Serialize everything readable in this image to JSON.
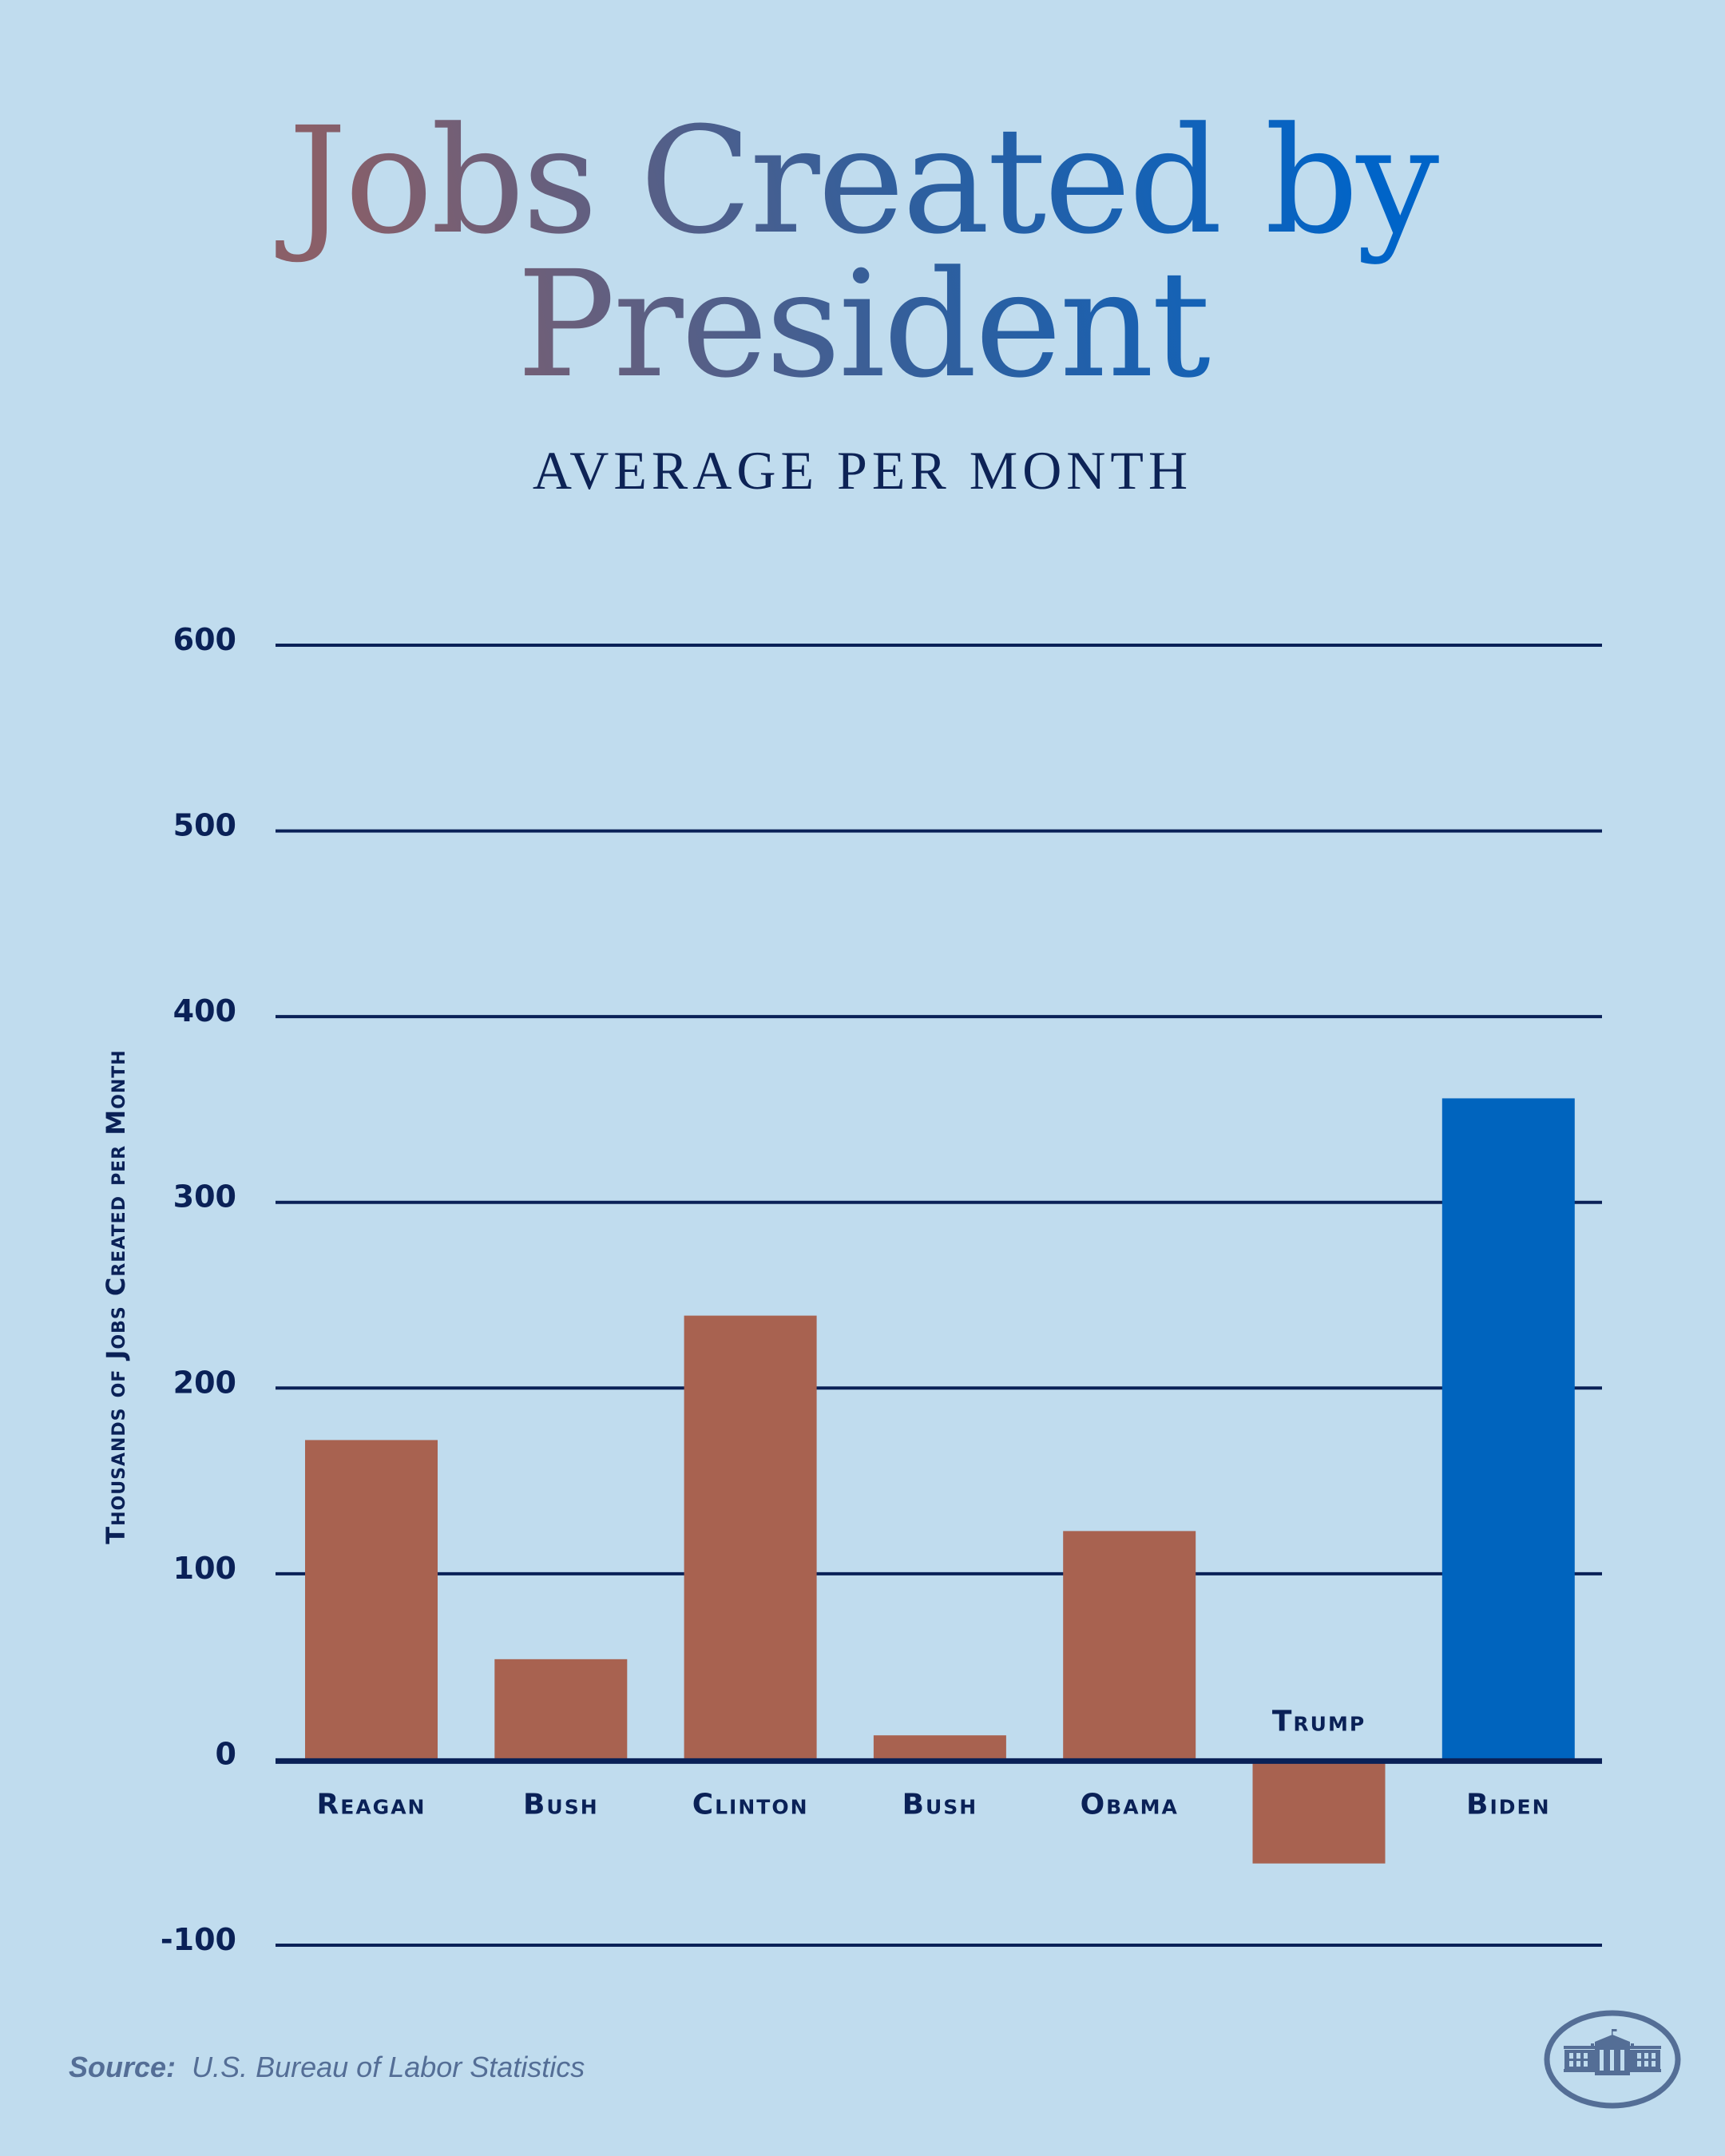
{
  "header": {
    "title_line1": "Jobs Created by",
    "title_line2": "President",
    "subtitle": "AVERAGE PER MONTH"
  },
  "footer": {
    "source_label": "Source:",
    "source_text": "U.S. Bureau of Labor Statistics",
    "logo_icon": "white-house-seal-icon"
  },
  "colors": {
    "background": "#c0dcee",
    "bar_default": "#a86250",
    "bar_highlight": "#0064be",
    "grid": "#0a2157",
    "text_dark": "#0a2157",
    "title_gradient_start": "#8a5f68",
    "title_gradient_end": "#0064c8",
    "source": "#546e96"
  },
  "chart_data": {
    "type": "bar",
    "title": "Jobs Created by President",
    "subtitle": "AVERAGE PER MONTH",
    "xlabel": "",
    "ylabel": "Thousands of Jobs Created per Month",
    "categories": [
      "Reagan",
      "Bush",
      "Clinton",
      "Bush",
      "Obama",
      "Trump",
      "Biden"
    ],
    "values": [
      172,
      54,
      239,
      13,
      123,
      -56,
      356
    ],
    "highlight": [
      false,
      false,
      false,
      false,
      false,
      false,
      true
    ],
    "ylim": [
      -100,
      600
    ],
    "yticks": [
      600,
      500,
      400,
      300,
      200,
      100,
      0,
      -100
    ],
    "ytick_labels": [
      "600",
      "500",
      "400",
      "300",
      "200",
      "100",
      "0",
      "-100"
    ],
    "grid": true,
    "legend": "none",
    "source": "U.S. Bureau of Labor Statistics"
  }
}
